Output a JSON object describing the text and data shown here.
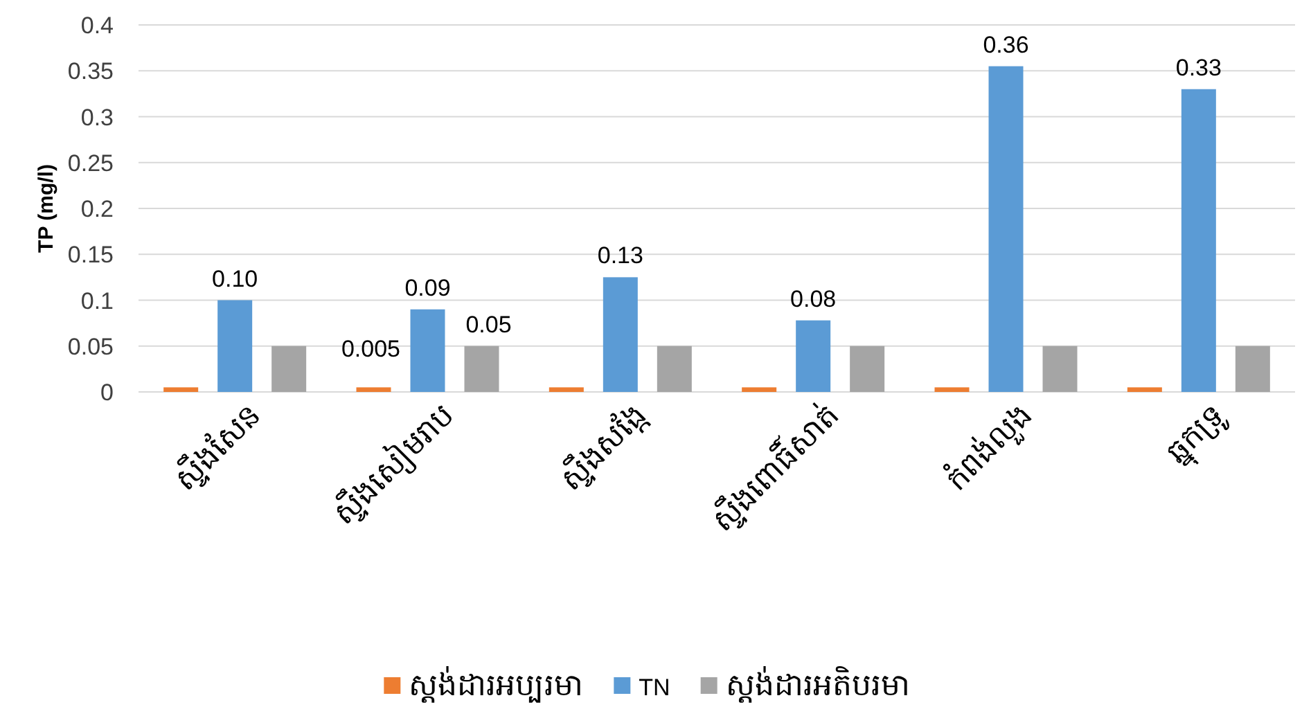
{
  "chart_data": {
    "type": "bar",
    "ylabel": "TP (mg/l)",
    "categories": [
      "ស្ទឹងសែន",
      "ស្ទឹងសៀមរាប",
      "ស្ទឹងសង្កែ",
      "ស្ទឹងពោធិ៍សាត់",
      "កំពង់លួង",
      "ឆ្នុកទ្រូ"
    ],
    "series": [
      {
        "name": "ស្តង់ដារអប្បរមា",
        "color": "#ed7d31",
        "values": [
          0.005,
          0.005,
          0.005,
          0.005,
          0.005,
          0.005
        ],
        "value_labels": [
          null,
          "0.005",
          null,
          null,
          null,
          null
        ]
      },
      {
        "name": "TN",
        "color": "#5b9bd5",
        "values": [
          0.1,
          0.09,
          0.125,
          0.078,
          0.355,
          0.33
        ],
        "value_labels": [
          "0.10",
          "0.09",
          "0.13",
          "0.08",
          "0.36",
          "0.33"
        ]
      },
      {
        "name": "ស្តង់ដារអតិបរមា",
        "color": "#a5a5a5",
        "values": [
          0.05,
          0.05,
          0.05,
          0.05,
          0.05,
          0.05
        ],
        "value_labels": [
          null,
          "0.05",
          null,
          null,
          null,
          null
        ]
      }
    ],
    "ylim": [
      0,
      0.4
    ],
    "yticks": [
      0,
      0.05,
      0.1,
      0.15,
      0.2,
      0.25,
      0.3,
      0.35,
      0.4
    ],
    "grid": "y",
    "legend": "bottom"
  }
}
